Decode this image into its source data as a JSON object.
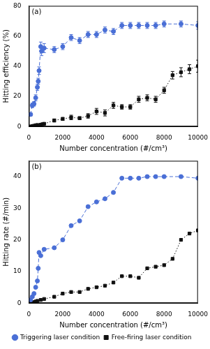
{
  "chart_data": [
    {
      "type": "line",
      "title": "(a)",
      "x_label": "Number concentration (#/cm³)",
      "y_label": "Hitting efficiency (%)",
      "xlim": [
        0,
        10000
      ],
      "xticks": [
        0,
        2000,
        4000,
        6000,
        8000,
        10000
      ],
      "ylim": [
        0,
        80
      ],
      "yticks": [
        0,
        20,
        40,
        60,
        80
      ],
      "grid": false,
      "series": [
        {
          "name": "Triggering laser condition",
          "color": "#4a6fd6",
          "marker": "circle",
          "line_style": "dashed",
          "x": [
            100,
            200,
            300,
            400,
            500,
            550,
            600,
            700,
            750,
            900,
            1500,
            2000,
            2500,
            3000,
            3500,
            4000,
            4500,
            5000,
            5500,
            6000,
            6500,
            7000,
            7500,
            8000,
            9000,
            10000
          ],
          "values": [
            8,
            14,
            15,
            19,
            26,
            30,
            37,
            53,
            50,
            52,
            51,
            53,
            59,
            57,
            61,
            61,
            64,
            63,
            67,
            67,
            67,
            67,
            67,
            68,
            68,
            67
          ],
          "errors": [
            1,
            1.5,
            1.5,
            2,
            2,
            2,
            2.5,
            3,
            3,
            3,
            2,
            2,
            2,
            2,
            2,
            2,
            2,
            2,
            2,
            2,
            2,
            2,
            2,
            2,
            2,
            2.5
          ]
        },
        {
          "name": "Free-firing laser condition",
          "color": "#111111",
          "marker": "square",
          "line_style": "dotted",
          "x": [
            100,
            200,
            300,
            400,
            500,
            700,
            800,
            900,
            1500,
            2000,
            2500,
            3000,
            3500,
            4000,
            4500,
            5000,
            5500,
            6000,
            6500,
            7000,
            7500,
            8000,
            8500,
            9000,
            9500,
            10000
          ],
          "values": [
            0,
            0.3,
            0.5,
            0.8,
            1,
            1.2,
            1.5,
            1.8,
            4,
            5,
            6,
            5.5,
            7,
            10,
            9,
            14,
            13,
            13,
            18,
            19,
            18,
            24,
            34,
            36,
            38,
            40
          ],
          "errors": [
            0.3,
            0.3,
            0.3,
            0.5,
            0.5,
            0.5,
            0.5,
            0.5,
            1,
            1,
            1.5,
            1,
            1.5,
            2,
            2,
            2,
            1.5,
            1.5,
            2,
            2,
            2,
            2,
            2.5,
            3,
            3,
            4
          ]
        }
      ]
    },
    {
      "type": "line",
      "title": "(b)",
      "x_label": "Number concentration (#/cm³)",
      "y_label": "Hitting rate (#/min)",
      "xlim": [
        0,
        10000
      ],
      "xticks": [
        0,
        2000,
        4000,
        6000,
        8000,
        10000
      ],
      "ylim": [
        0,
        45
      ],
      "yticks": [
        0,
        10,
        20,
        30,
        40
      ],
      "grid": false,
      "legend": "bottom",
      "series": [
        {
          "name": "Triggering laser condition",
          "color": "#4a6fd6",
          "marker": "circle",
          "line_style": "dashed",
          "x": [
            100,
            200,
            300,
            400,
            500,
            550,
            600,
            700,
            900,
            1500,
            2000,
            2500,
            3000,
            3500,
            4000,
            4500,
            5000,
            5500,
            6000,
            6500,
            7000,
            7500,
            8000,
            9000,
            10000
          ],
          "values": [
            1,
            2,
            3,
            5,
            7,
            11,
            16,
            15,
            17,
            17.5,
            20,
            24.5,
            26,
            30.5,
            32,
            33,
            35,
            39.5,
            39.5,
            39.5,
            40,
            40,
            40,
            40,
            39.5
          ]
        },
        {
          "name": "Free-firing laser condition",
          "color": "#111111",
          "marker": "square",
          "line_style": "dotted",
          "x": [
            100,
            200,
            300,
            400,
            500,
            700,
            900,
            1500,
            2000,
            2500,
            3000,
            3500,
            4000,
            4500,
            5000,
            5500,
            6000,
            6500,
            7000,
            7500,
            8000,
            8500,
            9000,
            9500,
            10000
          ],
          "values": [
            0,
            0.2,
            0.3,
            0.5,
            0.7,
            1,
            1.3,
            2,
            3,
            3.5,
            3.5,
            4.5,
            5,
            5.5,
            6.5,
            8.5,
            8.5,
            8,
            11,
            11.5,
            12,
            14,
            20,
            22,
            23
          ]
        }
      ]
    }
  ]
}
